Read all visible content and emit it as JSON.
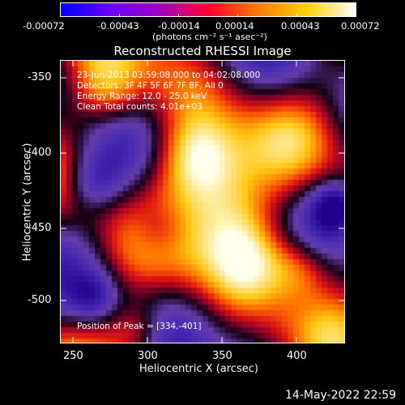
{
  "colorbar": {
    "ticks": [
      "-0.00072",
      "-0.00043",
      "-0.00014",
      "0.00014",
      "0.00043",
      "0.00072"
    ],
    "unit_label": "(photons cm⁻² s⁻¹ asec⁻²)",
    "colors": [
      "#0000ff",
      "#6a00ff",
      "#a000c0",
      "#ff0030",
      "#ff7a00",
      "#ffd000",
      "#ffffff"
    ]
  },
  "plot": {
    "title": "Reconstructed RHESSI Image",
    "annotations": [
      "23-Jun-2013 03:59:08.000 to 04:02:08.000",
      "Detectors: 3F 4F 5F 6F 7F 8F, All 0",
      "Energy Range: 12.0 - 25.0 keV",
      "Clean     Total counts: 4.01e+03"
    ],
    "peak_text": "Position of Peak = [334,-401]",
    "xlabel": "Heliocentric X (arcsec)",
    "ylabel": "Heliocentric Y (arcsec)",
    "x_ticks": [
      "250",
      "300",
      "350",
      "400"
    ],
    "y_ticks": [
      "-350",
      "-400",
      "-450",
      "-500"
    ]
  },
  "footer": {
    "datetime": "14-May-2022 22:59"
  }
}
